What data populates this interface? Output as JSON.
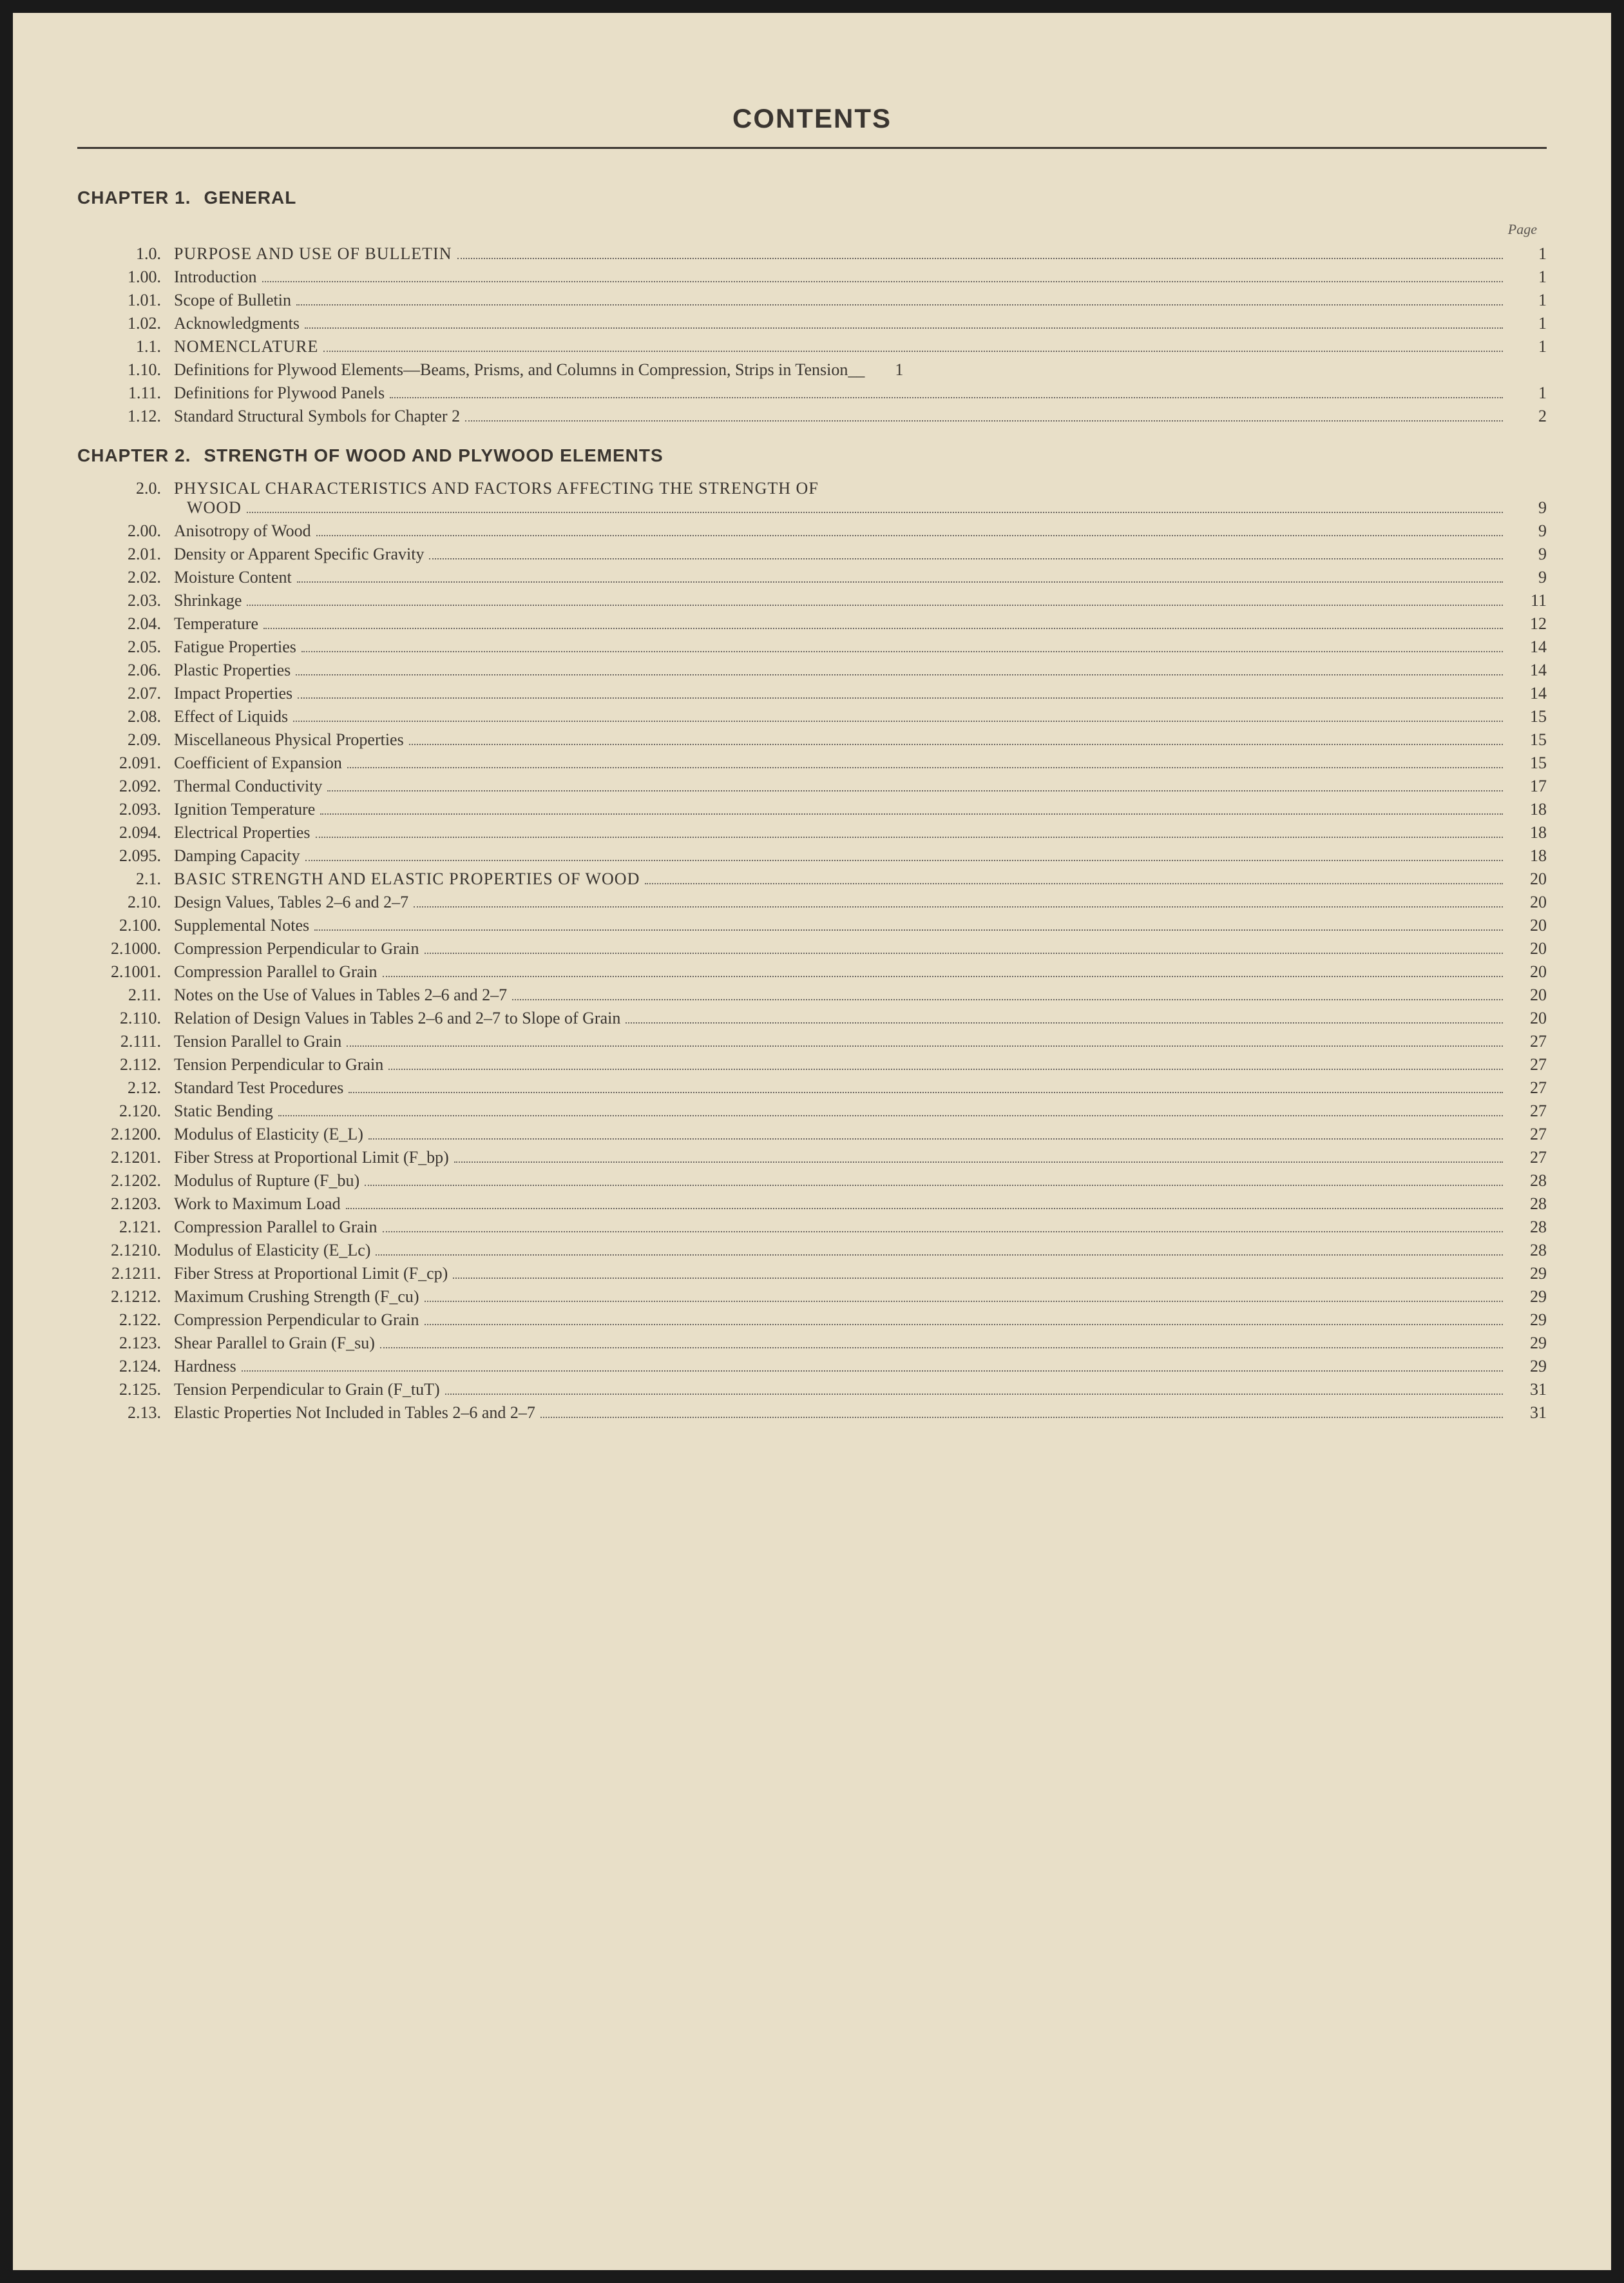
{
  "title": "CONTENTS",
  "pageLabel": "Page",
  "chapters": [
    {
      "label": "CHAPTER 1.",
      "title": "GENERAL",
      "entries": [
        {
          "num": "1.0.",
          "text": "PURPOSE AND USE OF BULLETIN",
          "page": "1",
          "caps": true
        },
        {
          "num": "1.00.",
          "text": "Introduction",
          "page": "1"
        },
        {
          "num": "1.01.",
          "text": "Scope of Bulletin",
          "page": "1"
        },
        {
          "num": "1.02.",
          "text": "Acknowledgments",
          "page": "1"
        },
        {
          "num": "1.1.",
          "text": "NOMENCLATURE",
          "page": "1",
          "caps": true
        },
        {
          "num": "1.10.",
          "text": "Definitions for Plywood Elements—Beams, Prisms, and Columns in Compression, Strips in Tension",
          "page": "1",
          "suffix": "__"
        },
        {
          "num": "1.11.",
          "text": "Definitions for Plywood Panels",
          "page": "1"
        },
        {
          "num": "1.12.",
          "text": "Standard Structural Symbols for Chapter 2",
          "page": "2"
        }
      ]
    },
    {
      "label": "CHAPTER 2.",
      "title": "STRENGTH OF WOOD AND PLYWOOD ELEMENTS",
      "entries": [
        {
          "num": "2.0.",
          "text": "PHYSICAL CHARACTERISTICS AND FACTORS AFFECTING THE STRENGTH OF",
          "cont": "WOOD",
          "page": "9",
          "caps": true
        },
        {
          "num": "2.00.",
          "text": "Anisotropy of Wood",
          "page": "9"
        },
        {
          "num": "2.01.",
          "text": "Density or Apparent Specific Gravity",
          "page": "9"
        },
        {
          "num": "2.02.",
          "text": "Moisture Content",
          "page": "9"
        },
        {
          "num": "2.03.",
          "text": "Shrinkage",
          "page": "11"
        },
        {
          "num": "2.04.",
          "text": "Temperature",
          "page": "12"
        },
        {
          "num": "2.05.",
          "text": "Fatigue Properties",
          "page": "14"
        },
        {
          "num": "2.06.",
          "text": "Plastic Properties",
          "page": "14"
        },
        {
          "num": "2.07.",
          "text": "Impact Properties",
          "page": "14"
        },
        {
          "num": "2.08.",
          "text": "Effect of Liquids",
          "page": "15"
        },
        {
          "num": "2.09.",
          "text": "Miscellaneous Physical Properties",
          "page": "15"
        },
        {
          "num": "2.091.",
          "text": "Coefficient of Expansion",
          "page": "15"
        },
        {
          "num": "2.092.",
          "text": "Thermal Conductivity",
          "page": "17"
        },
        {
          "num": "2.093.",
          "text": "Ignition Temperature",
          "page": "18"
        },
        {
          "num": "2.094.",
          "text": "Electrical Properties",
          "page": "18"
        },
        {
          "num": "2.095.",
          "text": "Damping Capacity",
          "page": "18"
        },
        {
          "num": "2.1.",
          "text": "BASIC STRENGTH AND ELASTIC PROPERTIES OF WOOD",
          "page": "20",
          "caps": true
        },
        {
          "num": "2.10.",
          "text": "Design Values, Tables 2–6 and 2–7",
          "page": "20"
        },
        {
          "num": "2.100.",
          "text": "Supplemental Notes",
          "page": "20"
        },
        {
          "num": "2.1000.",
          "text": "Compression Perpendicular to Grain",
          "page": "20"
        },
        {
          "num": "2.1001.",
          "text": "Compression Parallel to Grain",
          "page": "20"
        },
        {
          "num": "2.11.",
          "text": "Notes on the Use of Values in Tables 2–6 and 2–7",
          "page": "20"
        },
        {
          "num": "2.110.",
          "text": "Relation of Design Values in Tables 2–6 and 2–7 to Slope of Grain",
          "page": "20"
        },
        {
          "num": "2.111.",
          "text": "Tension Parallel to Grain",
          "page": "27"
        },
        {
          "num": "2.112.",
          "text": "Tension Perpendicular to Grain",
          "page": "27"
        },
        {
          "num": "2.12.",
          "text": "Standard Test Procedures",
          "page": "27"
        },
        {
          "num": "2.120.",
          "text": "Static Bending",
          "page": "27"
        },
        {
          "num": "2.1200.",
          "text": "Modulus of Elasticity (E_L)",
          "page": "27"
        },
        {
          "num": "2.1201.",
          "text": "Fiber Stress at Proportional Limit (F_bp)",
          "page": "27"
        },
        {
          "num": "2.1202.",
          "text": "Modulus of Rupture (F_bu)",
          "page": "28"
        },
        {
          "num": "2.1203.",
          "text": "Work to Maximum Load",
          "page": "28"
        },
        {
          "num": "2.121.",
          "text": "Compression Parallel to Grain",
          "page": "28"
        },
        {
          "num": "2.1210.",
          "text": "Modulus of Elasticity (E_Lc)",
          "page": "28"
        },
        {
          "num": "2.1211.",
          "text": "Fiber Stress at Proportional Limit (F_cp)",
          "page": "29"
        },
        {
          "num": "2.1212.",
          "text": "Maximum Crushing Strength (F_cu)",
          "page": "29"
        },
        {
          "num": "2.122.",
          "text": "Compression Perpendicular to Grain",
          "page": "29"
        },
        {
          "num": "2.123.",
          "text": "Shear Parallel to Grain (F_su)",
          "page": "29"
        },
        {
          "num": "2.124.",
          "text": "Hardness",
          "page": "29"
        },
        {
          "num": "2.125.",
          "text": "Tension Perpendicular to Grain (F_tuT)",
          "page": "31"
        },
        {
          "num": "2.13.",
          "text": "Elastic Properties Not Included in Tables 2–6 and 2–7",
          "page": "31"
        }
      ]
    }
  ]
}
